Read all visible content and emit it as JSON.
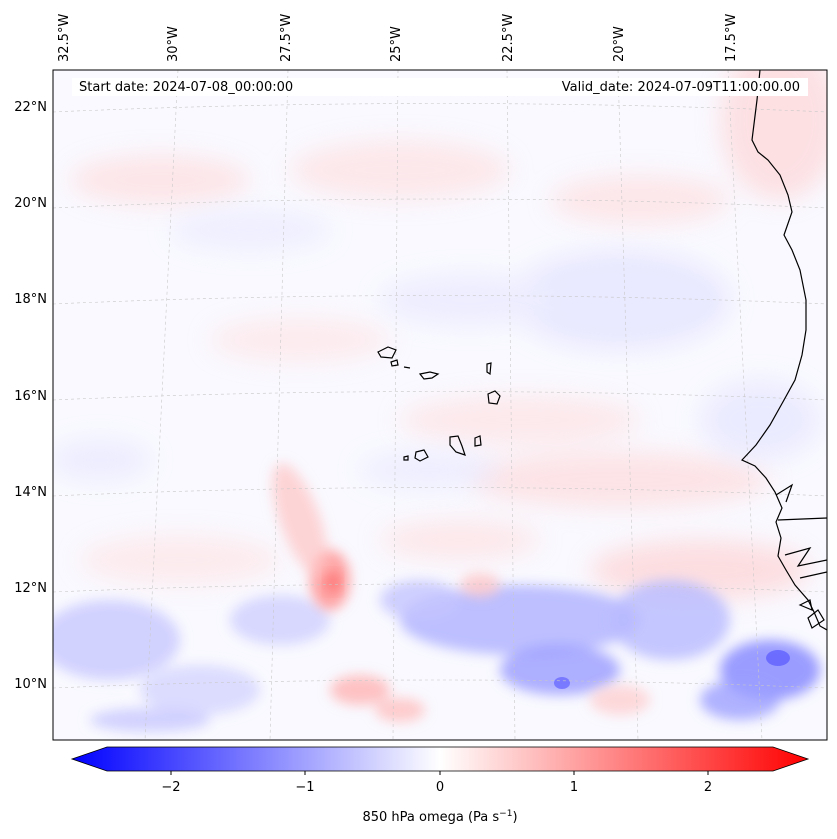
{
  "header": {
    "start_date": "Start date: 2024-07-08_00:00:00",
    "valid_date": "Valid_date: 2024-07-09T11:00:00.00"
  },
  "longitude_labels": [
    "32.5°W",
    "30°W",
    "27.5°W",
    "25°W",
    "22.5°W",
    "20°W",
    "17.5°W"
  ],
  "latitude_labels": [
    "22°N",
    "20°N",
    "18°N",
    "16°N",
    "14°N",
    "12°N",
    "10°N"
  ],
  "colorbar": {
    "ticks": [
      "−2",
      "−1",
      "0",
      "1",
      "2"
    ],
    "label_prefix": "850 hPa omega (Pa s",
    "label_exp": "−1",
    "label_suffix": ")",
    "range": [
      -2.6,
      2.6
    ],
    "colormap": "bwr",
    "colors": {
      "negative": "#0000ff",
      "zero": "#ffffff",
      "positive": "#ff0000"
    }
  },
  "map": {
    "projection": "conic",
    "gridlines": "dashed",
    "coastline_color": "#000000",
    "features": [
      "west-african-coast",
      "cape-verde-islands"
    ]
  }
}
